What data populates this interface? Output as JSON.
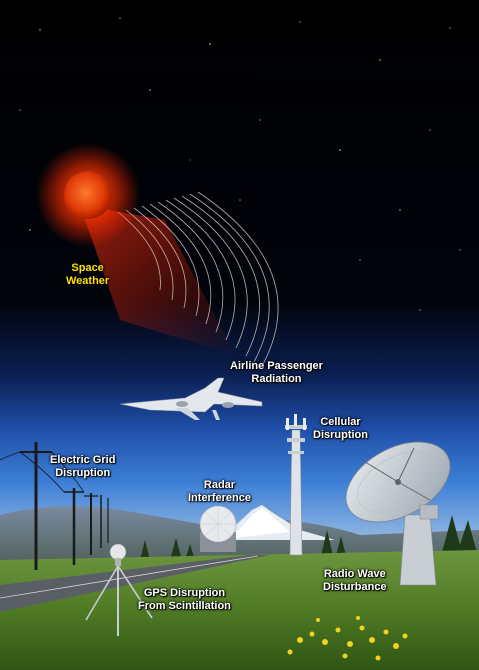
{
  "labels": {
    "space_weather": {
      "line1": "Space",
      "line2": "Weather"
    },
    "airline": {
      "line1": "Airline Passenger",
      "line2": "Radiation"
    },
    "cellular": {
      "line1": "Cellular",
      "line2": "Disruption"
    },
    "electric_grid": {
      "line1": "Electric Grid",
      "line2": "Disruption"
    },
    "radar": {
      "line1": "Radar",
      "line2": "Interference"
    },
    "gps": {
      "line1": "GPS Disruption",
      "line2": "From Scintillation"
    },
    "radio_wave": {
      "line1": "Radio Wave",
      "line2": "Disturbance"
    }
  },
  "colors": {
    "space_weather_label": "#ffe000",
    "label_text": "#ffffff",
    "sun": "#ff4a10",
    "sky_top": "#000000",
    "sky_horizon": "#3a7fd8",
    "grass": "#5e8a2e"
  }
}
